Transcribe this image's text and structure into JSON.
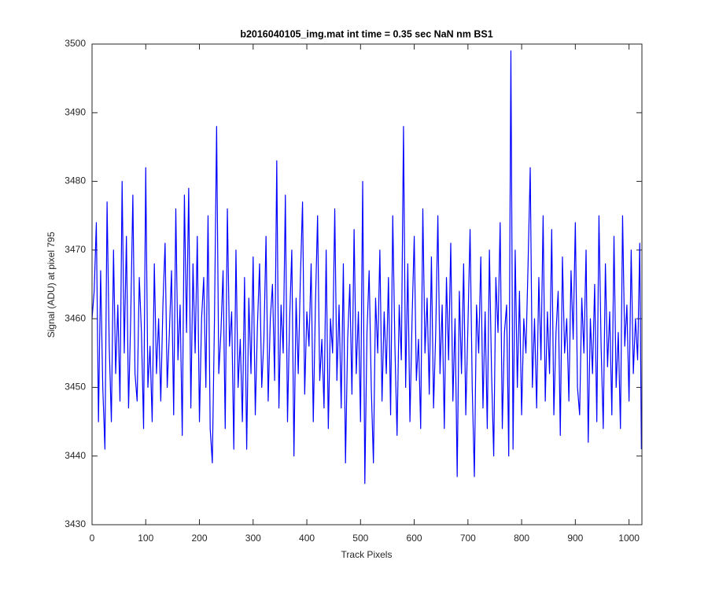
{
  "chart_data": {
    "type": "line",
    "title": "b2016040105_img.mat int time = 0.35 sec  NaN nm BS1",
    "xlabel": "Track Pixels",
    "ylabel": "Signal (ADU) at pixel 795",
    "xlim": [
      0,
      1024
    ],
    "ylim": [
      3430,
      3500
    ],
    "xticks": [
      0,
      100,
      200,
      300,
      400,
      500,
      600,
      700,
      800,
      900,
      1000
    ],
    "yticks": [
      3430,
      3440,
      3450,
      3460,
      3470,
      3480,
      3490,
      3500
    ],
    "grid": false,
    "x": [
      0,
      4,
      8,
      12,
      16,
      20,
      24,
      28,
      32,
      36,
      40,
      44,
      48,
      52,
      56,
      60,
      64,
      68,
      72,
      76,
      80,
      84,
      88,
      92,
      96,
      100,
      104,
      108,
      112,
      116,
      120,
      124,
      128,
      132,
      136,
      140,
      144,
      148,
      152,
      156,
      160,
      164,
      168,
      172,
      176,
      180,
      184,
      188,
      192,
      196,
      200,
      204,
      208,
      212,
      216,
      220,
      224,
      228,
      232,
      236,
      240,
      244,
      248,
      252,
      256,
      260,
      264,
      268,
      272,
      276,
      280,
      284,
      288,
      292,
      296,
      300,
      304,
      308,
      312,
      316,
      320,
      324,
      328,
      332,
      336,
      340,
      344,
      348,
      352,
      356,
      360,
      364,
      368,
      372,
      376,
      380,
      384,
      388,
      392,
      396,
      400,
      404,
      408,
      412,
      416,
      420,
      424,
      428,
      432,
      436,
      440,
      444,
      448,
      452,
      456,
      460,
      464,
      468,
      472,
      476,
      480,
      484,
      488,
      492,
      496,
      500,
      504,
      508,
      512,
      516,
      520,
      524,
      528,
      532,
      536,
      540,
      544,
      548,
      552,
      556,
      560,
      564,
      568,
      572,
      576,
      580,
      584,
      588,
      592,
      596,
      600,
      604,
      608,
      612,
      616,
      620,
      624,
      628,
      632,
      636,
      640,
      644,
      648,
      652,
      656,
      660,
      664,
      668,
      672,
      676,
      680,
      684,
      688,
      692,
      696,
      700,
      704,
      708,
      712,
      716,
      720,
      724,
      728,
      732,
      736,
      740,
      744,
      748,
      752,
      756,
      760,
      764,
      768,
      772,
      776,
      780,
      784,
      788,
      792,
      796,
      800,
      804,
      808,
      812,
      816,
      820,
      824,
      828,
      832,
      836,
      840,
      844,
      848,
      852,
      856,
      860,
      864,
      868,
      872,
      876,
      880,
      884,
      888,
      892,
      896,
      900,
      904,
      908,
      912,
      916,
      920,
      924,
      928,
      932,
      936,
      940,
      944,
      948,
      952,
      956,
      960,
      964,
      968,
      972,
      976,
      980,
      984,
      988,
      992,
      996,
      1000,
      1004,
      1008,
      1012,
      1016,
      1020,
      1023
    ],
    "series": [
      {
        "color": "#0000ff",
        "values": [
          3460,
          3464,
          3474,
          3445,
          3467,
          3450,
          3441,
          3477,
          3456,
          3445,
          3470,
          3452,
          3462,
          3448,
          3480,
          3455,
          3472,
          3447,
          3460,
          3478,
          3452,
          3448,
          3466,
          3458,
          3444,
          3482,
          3450,
          3456,
          3445,
          3468,
          3452,
          3460,
          3448,
          3462,
          3471,
          3450,
          3458,
          3467,
          3446,
          3476,
          3454,
          3462,
          3443,
          3478,
          3458,
          3479,
          3447,
          3468,
          3455,
          3472,
          3445,
          3460,
          3466,
          3450,
          3475,
          3444,
          3439,
          3460,
          3488,
          3452,
          3458,
          3467,
          3444,
          3476,
          3456,
          3461,
          3441,
          3470,
          3450,
          3457,
          3445,
          3466,
          3441,
          3463,
          3452,
          3469,
          3446,
          3459,
          3468,
          3450,
          3457,
          3472,
          3448,
          3460,
          3465,
          3451,
          3483,
          3447,
          3462,
          3455,
          3478,
          3445,
          3460,
          3470,
          3440,
          3463,
          3452,
          3466,
          3477,
          3449,
          3461,
          3456,
          3468,
          3445,
          3462,
          3475,
          3451,
          3457,
          3447,
          3470,
          3444,
          3460,
          3455,
          3476,
          3451,
          3462,
          3447,
          3468,
          3439,
          3457,
          3465,
          3449,
          3473,
          3452,
          3461,
          3445,
          3480,
          3436,
          3458,
          3467,
          3450,
          3439,
          3463,
          3455,
          3470,
          3448,
          3461,
          3452,
          3466,
          3446,
          3475,
          3456,
          3443,
          3462,
          3454,
          3488,
          3450,
          3468,
          3445,
          3460,
          3472,
          3451,
          3457,
          3444,
          3476,
          3455,
          3463,
          3449,
          3469,
          3447,
          3458,
          3475,
          3452,
          3462,
          3444,
          3466,
          3454,
          3471,
          3448,
          3460,
          3437,
          3464,
          3452,
          3468,
          3446,
          3459,
          3473,
          3450,
          3437,
          3462,
          3455,
          3469,
          3447,
          3461,
          3444,
          3470,
          3452,
          3440,
          3466,
          3458,
          3474,
          3444,
          3458,
          3462,
          3440,
          3499,
          3441,
          3470,
          3450,
          3464,
          3446,
          3460,
          3455,
          3468,
          3482,
          3450,
          3460,
          3447,
          3466,
          3454,
          3475,
          3448,
          3461,
          3452,
          3473,
          3446,
          3458,
          3464,
          3443,
          3469,
          3455,
          3460,
          3448,
          3467,
          3457,
          3474,
          3450,
          3446,
          3463,
          3455,
          3470,
          3442,
          3460,
          3452,
          3465,
          3445,
          3475,
          3456,
          3444,
          3468,
          3453,
          3461,
          3446,
          3472,
          3450,
          3458,
          3444,
          3475,
          3456,
          3462,
          3448,
          3470,
          3452,
          3460,
          3454,
          3471,
          3441
        ]
      }
    ]
  }
}
